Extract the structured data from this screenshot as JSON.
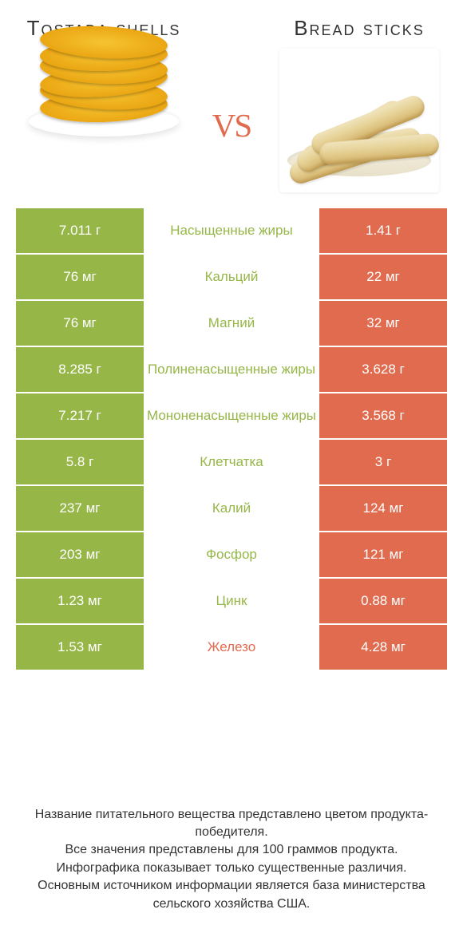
{
  "colors": {
    "green": "#96b748",
    "orange": "#e16b4e",
    "text": "#333333",
    "white": "#ffffff"
  },
  "titles": {
    "left": "Tostada shells",
    "right": "Bread sticks",
    "vs": "vs"
  },
  "rows": [
    {
      "left": "7.011 г",
      "label": "Насыщенные жиры",
      "right": "1.41 г",
      "winner": "left"
    },
    {
      "left": "76 мг",
      "label": "Кальций",
      "right": "22 мг",
      "winner": "left"
    },
    {
      "left": "76 мг",
      "label": "Магний",
      "right": "32 мг",
      "winner": "left"
    },
    {
      "left": "8.285 г",
      "label": "Полиненасыщенные жиры",
      "right": "3.628 г",
      "winner": "left"
    },
    {
      "left": "7.217 г",
      "label": "Мононенасыщенные жиры",
      "right": "3.568 г",
      "winner": "left"
    },
    {
      "left": "5.8 г",
      "label": "Клетчатка",
      "right": "3 г",
      "winner": "left"
    },
    {
      "left": "237 мг",
      "label": "Калий",
      "right": "124 мг",
      "winner": "left"
    },
    {
      "left": "203 мг",
      "label": "Фосфор",
      "right": "121 мг",
      "winner": "left"
    },
    {
      "left": "1.23 мг",
      "label": "Цинк",
      "right": "0.88 мг",
      "winner": "left"
    },
    {
      "left": "1.53 мг",
      "label": "Железо",
      "right": "4.28 мг",
      "winner": "right"
    }
  ],
  "footer": {
    "line1": "Название питательного вещества представлено цветом продукта-победителя.",
    "line2": "Все значения представлены для 100 граммов продукта.",
    "line3": "Инфографика показывает только существенные различия.",
    "line4": "Основным источником информации является база министерства сельского хозяйства США."
  }
}
